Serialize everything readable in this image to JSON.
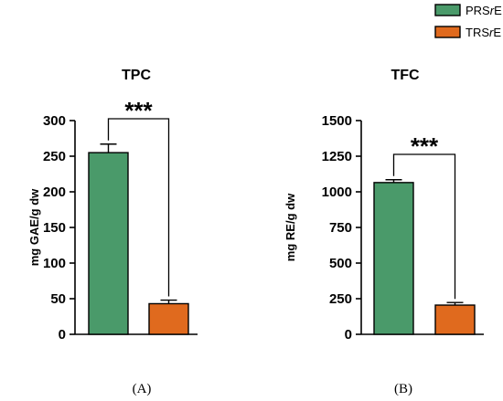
{
  "legend": {
    "items": [
      {
        "label": "PRSrE",
        "prefix": "PRS",
        "italic": "r",
        "suffix": "E",
        "color": "#4a9a6a"
      },
      {
        "label": "TRSrE",
        "prefix": "TRS",
        "italic": "r",
        "suffix": "E",
        "color": "#e06a1e"
      }
    ]
  },
  "chart_data": [
    {
      "type": "bar",
      "panel": "(A)",
      "title": "TPC",
      "ylabel": "mg GAE/g dw",
      "xlabel": "",
      "categories": [
        "PRSrE",
        "TRSrE"
      ],
      "values": [
        255,
        43
      ],
      "errors": [
        12,
        5
      ],
      "colors": [
        "#4a9a6a",
        "#e06a1e"
      ],
      "ylim": [
        0,
        300
      ],
      "yticks": [
        0,
        50,
        100,
        150,
        200,
        250,
        300
      ],
      "ytick_labels": [
        "0",
        "50",
        "100",
        "150",
        "200",
        "250",
        "300"
      ],
      "significance": "***",
      "grid": false
    },
    {
      "type": "bar",
      "panel": "(B)",
      "title": "TFC",
      "ylabel": "mg RE/g dw",
      "xlabel": "",
      "categories": [
        "PRSrE",
        "TRSrE"
      ],
      "values": [
        1065,
        205
      ],
      "errors": [
        20,
        18
      ],
      "colors": [
        "#4a9a6a",
        "#e06a1e"
      ],
      "ylim": [
        0,
        1500
      ],
      "yticks": [
        0,
        250,
        500,
        750,
        1000,
        1250,
        1500
      ],
      "ytick_labels": [
        "0",
        "250",
        "500",
        "750",
        "1000",
        "1250",
        "1500"
      ],
      "significance": "***",
      "grid": false
    }
  ]
}
